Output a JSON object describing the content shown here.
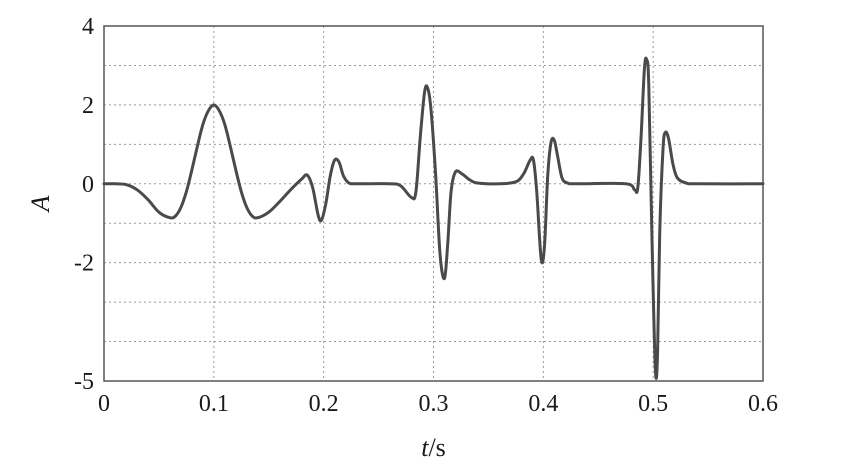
{
  "chart_data": {
    "type": "line",
    "title": "",
    "xlabel_italic": "t",
    "xlabel_rest": "/s",
    "ylabel": "A",
    "xlim": [
      0,
      0.6
    ],
    "ylim": [
      -5,
      4
    ],
    "grid": true,
    "legend": "none",
    "x_ticks": [
      0,
      0.1,
      0.2,
      0.3,
      0.4,
      0.5,
      0.6
    ],
    "x_tick_labels": [
      "0",
      "0.1",
      "0.2",
      "0.3",
      "0.4",
      "0.5",
      "0.6"
    ],
    "y_ticks": [
      4,
      2,
      0,
      -2,
      -5
    ],
    "y_tick_labels": [
      "4",
      "2",
      "0",
      "-2",
      "-5"
    ],
    "y_grid_values": [
      3,
      2,
      1,
      0,
      -1,
      -2,
      -3,
      -4
    ],
    "colors": {
      "line": "#4a4a4a",
      "grid": "#9a9a9a",
      "frame": "#555555"
    },
    "series": [
      {
        "values": [
          [
            0,
            0
          ],
          [
            0.01,
            0
          ],
          [
            0.02,
            -0.02
          ],
          [
            0.03,
            -0.15
          ],
          [
            0.04,
            -0.4
          ],
          [
            0.05,
            -0.72
          ],
          [
            0.06,
            -0.86
          ],
          [
            0.065,
            -0.82
          ],
          [
            0.07,
            -0.6
          ],
          [
            0.075,
            -0.2
          ],
          [
            0.08,
            0.35
          ],
          [
            0.085,
            0.95
          ],
          [
            0.09,
            1.5
          ],
          [
            0.095,
            1.85
          ],
          [
            0.1,
            2.0
          ],
          [
            0.105,
            1.85
          ],
          [
            0.11,
            1.5
          ],
          [
            0.115,
            0.95
          ],
          [
            0.12,
            0.35
          ],
          [
            0.125,
            -0.2
          ],
          [
            0.13,
            -0.6
          ],
          [
            0.135,
            -0.82
          ],
          [
            0.14,
            -0.86
          ],
          [
            0.15,
            -0.72
          ],
          [
            0.16,
            -0.45
          ],
          [
            0.17,
            -0.15
          ],
          [
            0.18,
            0.12
          ],
          [
            0.185,
            0.22
          ],
          [
            0.19,
            -0.1
          ],
          [
            0.195,
            -0.8
          ],
          [
            0.198,
            -0.92
          ],
          [
            0.202,
            -0.5
          ],
          [
            0.206,
            0.2
          ],
          [
            0.21,
            0.6
          ],
          [
            0.214,
            0.55
          ],
          [
            0.218,
            0.2
          ],
          [
            0.223,
            0.02
          ],
          [
            0.23,
            0
          ],
          [
            0.26,
            0
          ],
          [
            0.27,
            -0.05
          ],
          [
            0.28,
            -0.35
          ],
          [
            0.284,
            -0.2
          ],
          [
            0.288,
            1.2
          ],
          [
            0.292,
            2.35
          ],
          [
            0.295,
            2.4
          ],
          [
            0.298,
            1.8
          ],
          [
            0.302,
            0.2
          ],
          [
            0.306,
            -1.8
          ],
          [
            0.31,
            -2.4
          ],
          [
            0.313,
            -1.5
          ],
          [
            0.316,
            -0.2
          ],
          [
            0.32,
            0.3
          ],
          [
            0.326,
            0.25
          ],
          [
            0.333,
            0.1
          ],
          [
            0.34,
            0.02
          ],
          [
            0.36,
            0
          ],
          [
            0.375,
            0.05
          ],
          [
            0.382,
            0.25
          ],
          [
            0.388,
            0.6
          ],
          [
            0.391,
            0.6
          ],
          [
            0.394,
            -0.2
          ],
          [
            0.398,
            -1.9
          ],
          [
            0.401,
            -1.6
          ],
          [
            0.404,
            0.2
          ],
          [
            0.407,
            1.05
          ],
          [
            0.41,
            1.1
          ],
          [
            0.413,
            0.7
          ],
          [
            0.417,
            0.15
          ],
          [
            0.422,
            0.02
          ],
          [
            0.43,
            0
          ],
          [
            0.475,
            0
          ],
          [
            0.483,
            -0.15
          ],
          [
            0.486,
            -0.1
          ],
          [
            0.489,
            1.2
          ],
          [
            0.492,
            2.9
          ],
          [
            0.494,
            3.15
          ],
          [
            0.496,
            2.5
          ],
          [
            0.499,
            -1.5
          ],
          [
            0.502,
            -4.7
          ],
          [
            0.504,
            -4.3
          ],
          [
            0.506,
            -1.2
          ],
          [
            0.509,
            0.9
          ],
          [
            0.511,
            1.3
          ],
          [
            0.514,
            1.15
          ],
          [
            0.518,
            0.5
          ],
          [
            0.522,
            0.15
          ],
          [
            0.53,
            0.02
          ],
          [
            0.54,
            0
          ],
          [
            0.6,
            0
          ]
        ]
      }
    ]
  }
}
